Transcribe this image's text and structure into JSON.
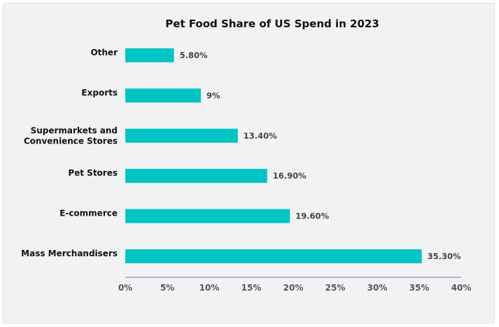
{
  "chart_data": {
    "type": "bar",
    "orientation": "horizontal",
    "title": "Pet Food Share of US Spend in 2023",
    "categories": [
      [
        "Other"
      ],
      [
        "Exports"
      ],
      [
        "Supermarkets and",
        "Convenience Stores"
      ],
      [
        "Pet Stores"
      ],
      [
        "E-commerce"
      ],
      [
        "Mass Merchandisers"
      ]
    ],
    "values": [
      5.8,
      9,
      13.4,
      16.9,
      19.6,
      35.3
    ],
    "data_labels": [
      "5.80%",
      "9%",
      "13.40%",
      "16.90%",
      "19.60%",
      "35.30%"
    ],
    "xlim": [
      0,
      40
    ],
    "xticks": [
      0,
      5,
      10,
      15,
      20,
      25,
      30,
      35,
      40
    ],
    "xtick_labels": [
      "0%",
      "5%",
      "10%",
      "15%",
      "20%",
      "25%",
      "30%",
      "35%",
      "40%"
    ],
    "xlabel": "",
    "ylabel": "",
    "grid": false,
    "legend": "none",
    "colors": {
      "bar": "#00c5c4",
      "axis": "#8fa3d1",
      "background": "#f2f2f2"
    }
  }
}
